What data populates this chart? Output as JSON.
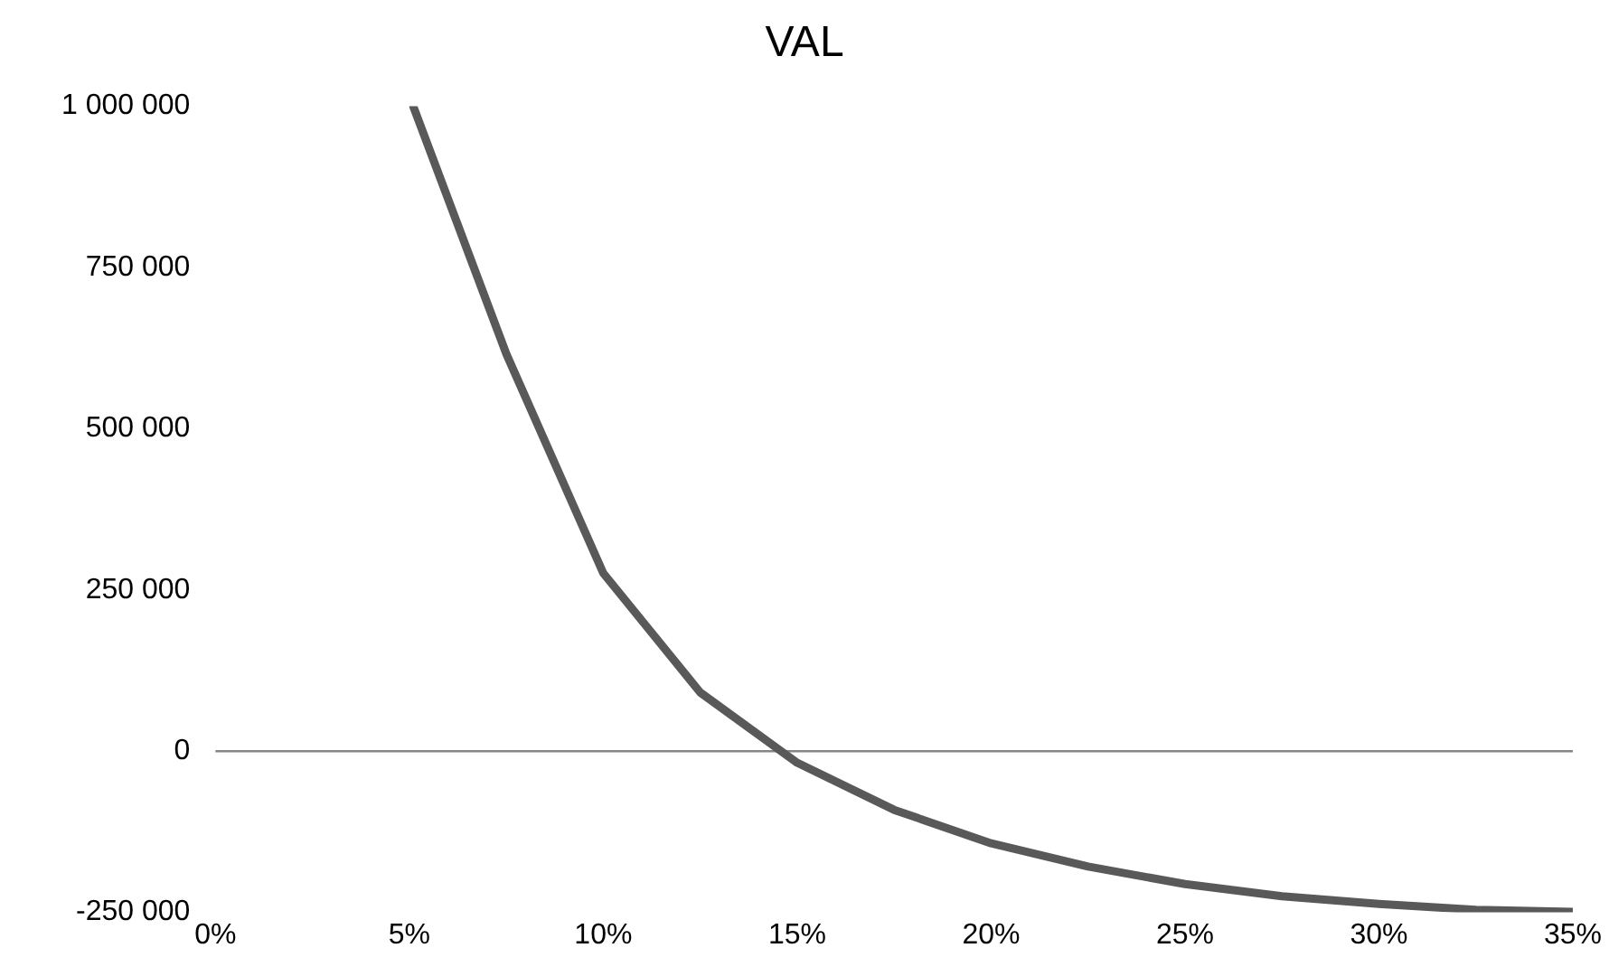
{
  "chart_data": {
    "type": "line",
    "title": "VAL",
    "series": [
      {
        "color": "#595959",
        "x": [
          5.1,
          7.5,
          10,
          12.5,
          15,
          17.5,
          20,
          22.5,
          25,
          27.5,
          30,
          32.5,
          35
        ],
        "values": [
          1000000,
          616000,
          276000,
          91000,
          -18000,
          -91000,
          -143000,
          -179000,
          -206000,
          -225000,
          -237000,
          -246000,
          -249000
        ]
      }
    ],
    "xlim": [
      0,
      35
    ],
    "xticks": [
      {
        "value": 0,
        "label": "0%"
      },
      {
        "value": 5,
        "label": "5%"
      },
      {
        "value": 10,
        "label": "10%"
      },
      {
        "value": 15,
        "label": "15%"
      },
      {
        "value": 20,
        "label": "20%"
      },
      {
        "value": 25,
        "label": "25%"
      },
      {
        "value": 30,
        "label": "30%"
      },
      {
        "value": 35,
        "label": "35%"
      }
    ],
    "ylim": [
      -250000,
      1000000
    ],
    "yticks": [
      {
        "value": -250000,
        "label": "-250 000"
      },
      {
        "value": 0,
        "label": "0"
      },
      {
        "value": 250000,
        "label": "250 000"
      },
      {
        "value": 500000,
        "label": "500 000"
      },
      {
        "value": 750000,
        "label": "750 000"
      },
      {
        "value": 1000000,
        "label": "1 000 000"
      }
    ],
    "ref_lines": [
      {
        "axis": "y",
        "value": 0,
        "color": "#868686"
      }
    ],
    "grid": false,
    "legend": false,
    "marker": "none",
    "line_style": "solid"
  }
}
